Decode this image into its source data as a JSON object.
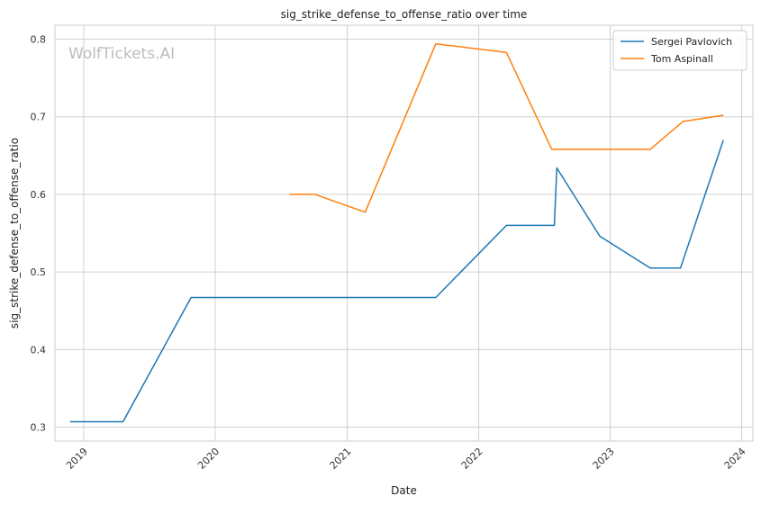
{
  "chart_data": {
    "type": "line",
    "title": "sig_strike_defense_to_offense_ratio over time",
    "xlabel": "Date",
    "ylabel": "sig_strike_defense_to_offense_ratio",
    "watermark": "WolfTickets.AI",
    "xlim": [
      "2018-10-13",
      "2024-02-01"
    ],
    "ylim": [
      0.282,
      0.818
    ],
    "x_ticks": [
      "2019-01-01",
      "2020-01-01",
      "2021-01-01",
      "2022-01-01",
      "2023-01-01",
      "2024-01-01"
    ],
    "x_tick_labels": [
      "2019",
      "2020",
      "2021",
      "2022",
      "2023",
      "2024"
    ],
    "y_ticks": [
      0.3,
      0.4,
      0.5,
      0.6,
      0.7,
      0.8
    ],
    "y_tick_labels": [
      "0.3",
      "0.4",
      "0.5",
      "0.6",
      "0.7",
      "0.8"
    ],
    "grid": true,
    "legend_position": "top-right",
    "series": [
      {
        "name": "Sergei Pavlovich",
        "color": "#1f77b4",
        "x": [
          "2018-11-24",
          "2019-04-20",
          "2019-10-26",
          "2021-09-04",
          "2022-03-19",
          "2022-07-30",
          "2022-08-06",
          "2022-12-03",
          "2023-04-22",
          "2023-07-15",
          "2023-11-11"
        ],
        "y": [
          0.307,
          0.307,
          0.467,
          0.467,
          0.56,
          0.56,
          0.634,
          0.546,
          0.505,
          0.505,
          0.67
        ]
      },
      {
        "name": "Tom Aspinall",
        "color": "#ff7f0e",
        "x": [
          "2020-07-25",
          "2020-10-03",
          "2021-02-20",
          "2021-09-04",
          "2022-03-19",
          "2022-07-23",
          "2023-04-22",
          "2023-07-22",
          "2023-11-11"
        ],
        "y": [
          0.6,
          0.6,
          0.577,
          0.794,
          0.783,
          0.658,
          0.658,
          0.694,
          0.702
        ]
      }
    ]
  }
}
